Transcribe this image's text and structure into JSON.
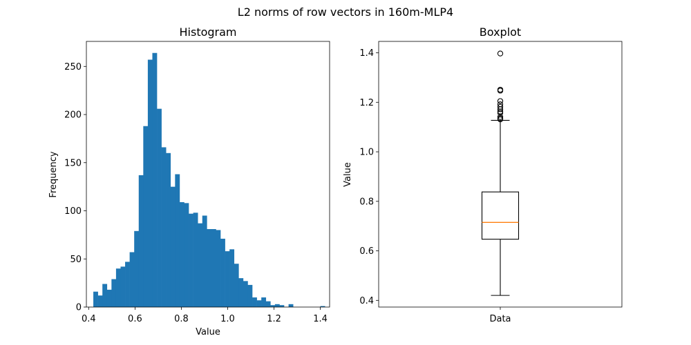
{
  "figure": {
    "suptitle": "L2 norms of row vectors in 160m-MLP4"
  },
  "chart_data": [
    {
      "type": "histogram",
      "title": "Histogram",
      "xlabel": "Value",
      "ylabel": "Frequency",
      "xlim": [
        0.39,
        1.44
      ],
      "ylim": [
        0,
        276
      ],
      "x_ticks": [
        0.4,
        0.6,
        0.8,
        1.0,
        1.2,
        1.4
      ],
      "x_tick_labels": [
        "0.4",
        "0.6",
        "0.8",
        "1.0",
        "1.2",
        "1.4"
      ],
      "y_ticks": [
        0,
        50,
        100,
        150,
        200,
        250
      ],
      "y_tick_labels": [
        "0",
        "50",
        "100",
        "150",
        "200",
        "250"
      ],
      "bin_start": 0.42,
      "bin_width": 0.0196,
      "counts": [
        16,
        12,
        24,
        18,
        29,
        40,
        42,
        47,
        57,
        79,
        137,
        188,
        257,
        264,
        206,
        166,
        160,
        125,
        138,
        109,
        108,
        97,
        98,
        87,
        95,
        81,
        81,
        80,
        71,
        58,
        60,
        45,
        30,
        27,
        23,
        10,
        7,
        10,
        6,
        2,
        3,
        2,
        0,
        3,
        0,
        0,
        0,
        0,
        0,
        0,
        1
      ],
      "bar_color": "#1f77b4"
    },
    {
      "type": "boxplot",
      "title": "Boxplot",
      "xlabel": "",
      "ylabel": "Value",
      "category": "Data",
      "ylim": [
        0.373,
        1.446
      ],
      "y_ticks": [
        0.4,
        0.6,
        0.8,
        1.0,
        1.2,
        1.4
      ],
      "y_tick_labels": [
        "0.4",
        "0.6",
        "0.8",
        "1.0",
        "1.2",
        "1.4"
      ],
      "whisker_low": 0.42,
      "q1": 0.647,
      "median": 0.715,
      "q3": 0.838,
      "whisker_high": 1.127,
      "outliers": [
        1.397,
        1.251,
        1.247,
        1.205,
        1.192,
        1.182,
        1.172,
        1.163,
        1.157,
        1.141,
        1.135,
        1.131
      ],
      "median_color": "#ff7f0e"
    }
  ]
}
